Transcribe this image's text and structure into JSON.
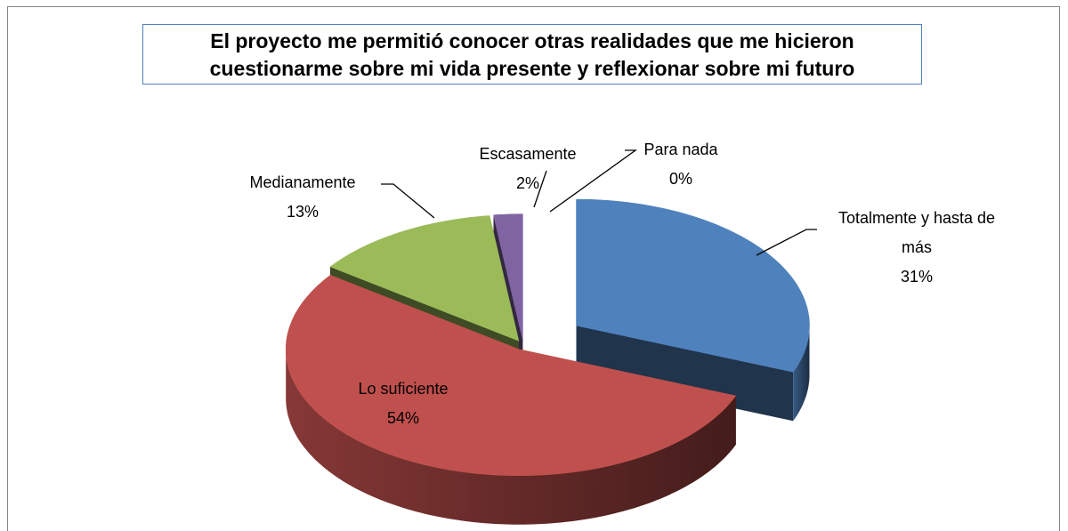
{
  "chart_data": {
    "type": "pie3d",
    "title": "El proyecto me permitió conocer otras realidades que me hicieron cuestionarme sobre mi vida presente y reflexionar sobre mi futuro",
    "categories": [
      "Totalmente y hasta de más",
      "Lo suficiente",
      "Medianamente",
      "Escasamente",
      "Para nada"
    ],
    "values": [
      31,
      54,
      13,
      2,
      0
    ],
    "value_labels": [
      "31%",
      "54%",
      "13%",
      "2%",
      "0%"
    ],
    "colors": [
      "#4f81bd",
      "#c0504d",
      "#9bbb59",
      "#8064a2",
      "#4bacc6"
    ]
  }
}
